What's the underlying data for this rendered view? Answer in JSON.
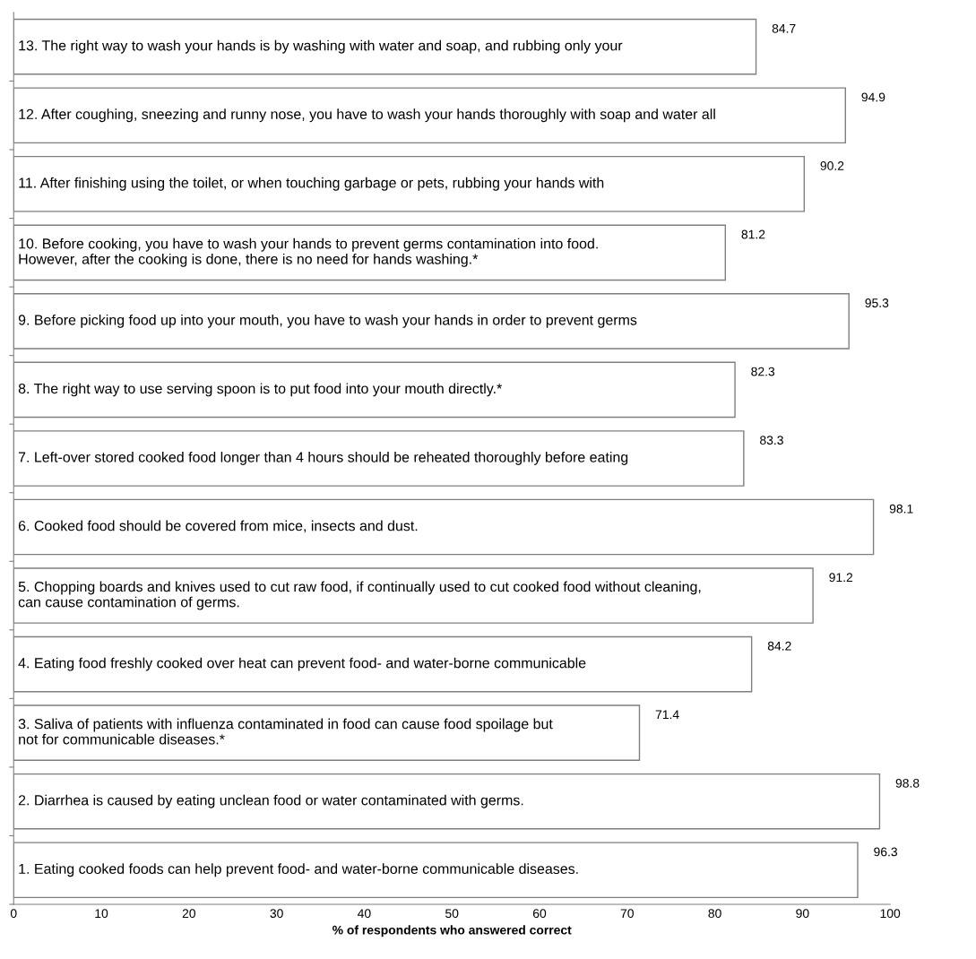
{
  "chart_data": {
    "type": "bar",
    "orientation": "horizontal",
    "xlabel": "% of respondents who answered correct",
    "categories": [
      "13. The right way to wash your hands is by washing with water and soap, and rubbing only your",
      "12. After coughing, sneezing and runny nose, you have to wash your hands thoroughly with soap and water all",
      "11. After finishing using the toilet, or when touching garbage or pets, rubbing your hands with",
      "10. Before cooking, you have to wash your hands to prevent germs contamination into food.\nHowever, after the cooking is done, there is no need for hands washing.*",
      "9. Before picking food up into your mouth, you have to wash your hands in order to prevent germs",
      "8. The right way to use serving spoon is to put food into your mouth directly.*",
      "7. Left-over stored cooked food longer than 4 hours should be reheated thoroughly before eating",
      "6. Cooked food should be covered from mice, insects and dust.",
      "5. Chopping boards and knives used to cut raw food, if continually used to cut cooked food without cleaning,\ncan cause contamination of germs.",
      "4. Eating food freshly cooked over heat can prevent food- and water-borne communicable",
      "3. Saliva of patients with influenza contaminated in food can cause food spoilage but\nnot for communicable diseases.*",
      "2. Diarrhea is caused by eating unclean food or water contaminated with germs.",
      "1. Eating cooked foods can help prevent food- and water-borne communicable diseases."
    ],
    "values": [
      84.7,
      94.9,
      90.2,
      81.2,
      95.3,
      82.3,
      83.3,
      98.1,
      91.2,
      84.2,
      71.4,
      98.8,
      96.3
    ],
    "color": "#ffffff",
    "data_labels": true,
    "grid": false,
    "legend": false,
    "tick_labels": "x",
    "xlim": [
      0,
      100
    ],
    "xticks": [
      0,
      10,
      20,
      30,
      40,
      50,
      60,
      70,
      80,
      90,
      100
    ]
  }
}
